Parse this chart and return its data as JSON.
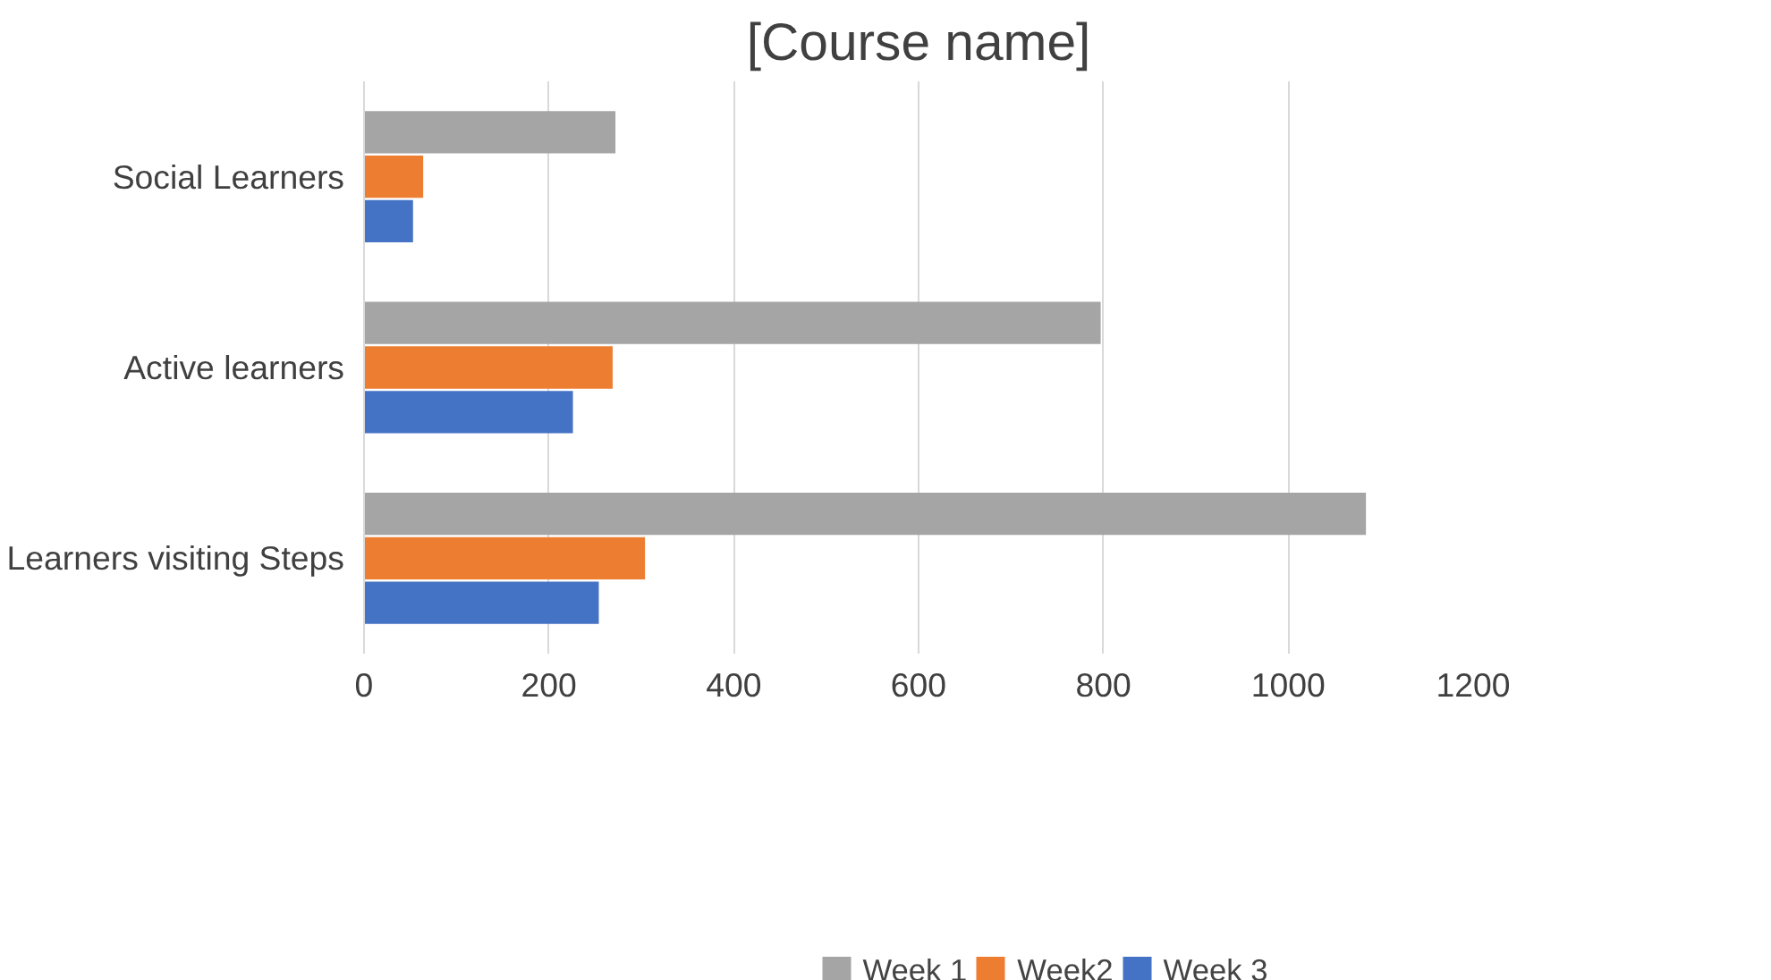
{
  "chart_data": {
    "type": "bar",
    "orientation": "horizontal",
    "title": "[Course name]",
    "categories": [
      "Social Learners",
      "Active learners",
      "Learners visiting Steps"
    ],
    "series": [
      {
        "name": "Week 1",
        "color": "#a5a5a5",
        "values": [
          272,
          797,
          1084
        ]
      },
      {
        "name": "Week2",
        "color": "#ed7d31",
        "values": [
          64,
          269,
          304
        ]
      },
      {
        "name": "Week 3",
        "color": "#4472c4",
        "values": [
          53,
          226,
          254
        ]
      }
    ],
    "xlim": [
      0,
      1200
    ],
    "xticks": [
      0,
      200,
      400,
      600,
      800,
      1000,
      1200
    ],
    "grid": "x",
    "legend": "bottom"
  }
}
